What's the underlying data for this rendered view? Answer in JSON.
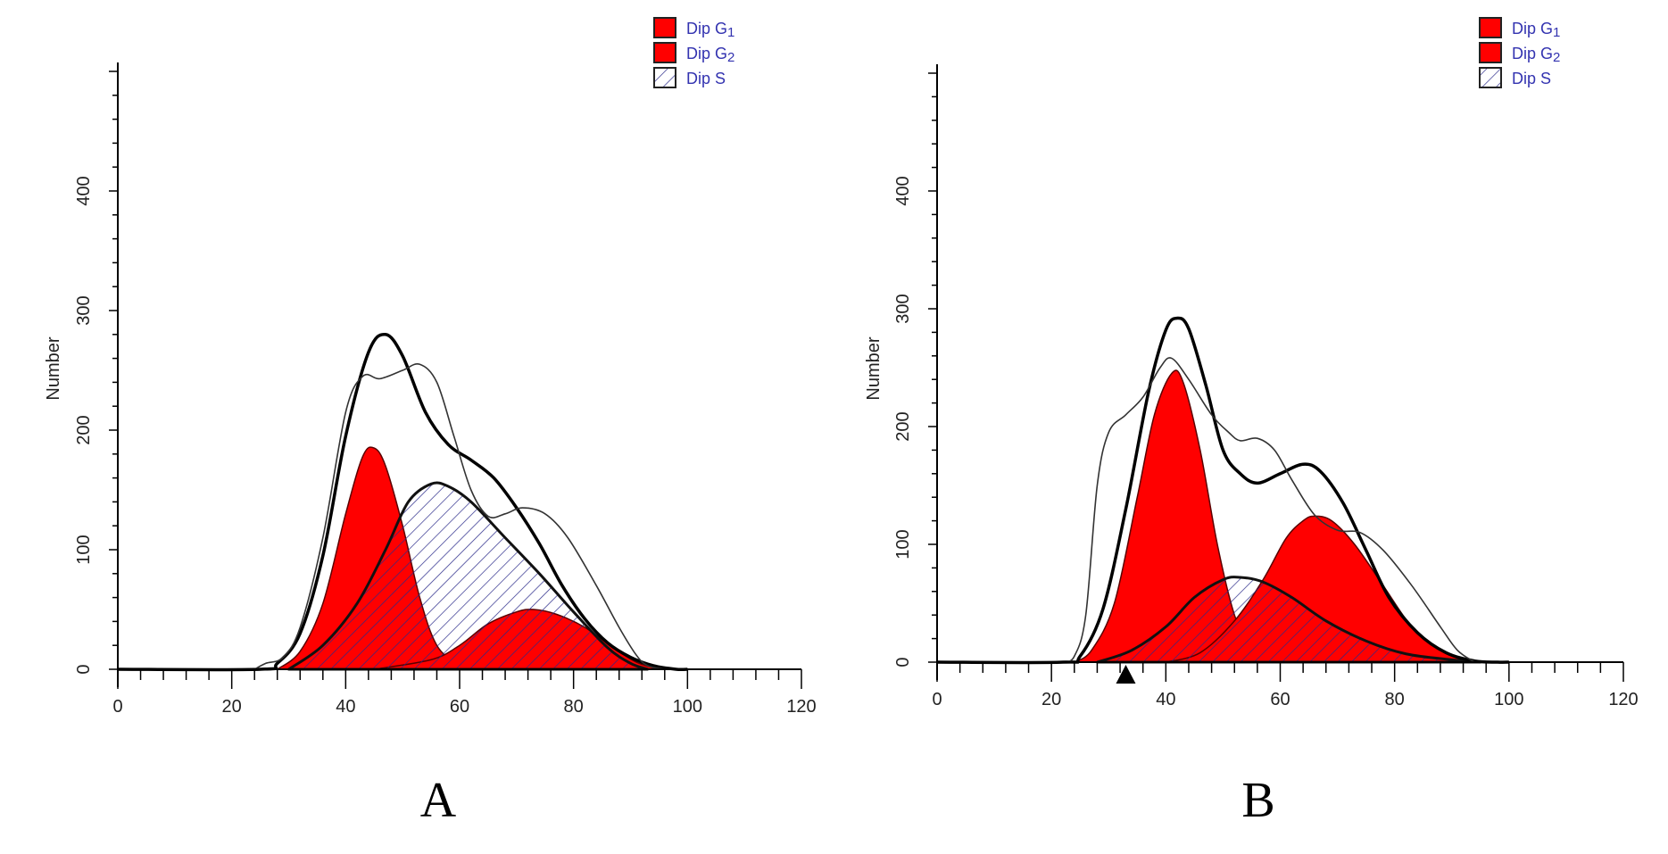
{
  "chart_data": [
    {
      "panel_label": "A",
      "type": "area",
      "ylabel": "Number",
      "xlim": [
        0,
        120
      ],
      "ylim": [
        0,
        500
      ],
      "xticks": [
        0,
        20,
        40,
        60,
        80,
        100,
        120
      ],
      "yticks": [
        0,
        100,
        200,
        300,
        400
      ],
      "legend": {
        "position": "top-right",
        "entries": [
          {
            "label": "Dip G",
            "sub": "1",
            "style": "solid",
            "color": "#ff0000"
          },
          {
            "label": "Dip G",
            "sub": "2",
            "style": "solid",
            "color": "#ff0000"
          },
          {
            "label": "Dip S",
            "sub": "",
            "style": "hatch",
            "color": "#2a2a8a"
          }
        ]
      },
      "series": [
        {
          "name": "Dip G1",
          "kind": "fill",
          "color": "#ff0000",
          "points": [
            [
              28,
              0
            ],
            [
              32,
              15
            ],
            [
              36,
              55
            ],
            [
              40,
              130
            ],
            [
              43,
              178
            ],
            [
              45,
              185
            ],
            [
              47,
              170
            ],
            [
              50,
              120
            ],
            [
              53,
              60
            ],
            [
              56,
              20
            ],
            [
              60,
              3
            ],
            [
              62,
              0
            ]
          ]
        },
        {
          "name": "Dip G2",
          "kind": "fill",
          "color": "#ff0000",
          "points": [
            [
              45,
              0
            ],
            [
              55,
              8
            ],
            [
              60,
              20
            ],
            [
              65,
              38
            ],
            [
              70,
              48
            ],
            [
              73,
              50
            ],
            [
              77,
              46
            ],
            [
              82,
              35
            ],
            [
              87,
              18
            ],
            [
              91,
              6
            ],
            [
              95,
              0
            ]
          ]
        },
        {
          "name": "Dip S",
          "kind": "hatch",
          "color": "#2a2a8a",
          "points": [
            [
              30,
              0
            ],
            [
              36,
              20
            ],
            [
              42,
              55
            ],
            [
              47,
              100
            ],
            [
              51,
              140
            ],
            [
              55,
              155
            ],
            [
              58,
              153
            ],
            [
              62,
              140
            ],
            [
              68,
              110
            ],
            [
              74,
              80
            ],
            [
              80,
              48
            ],
            [
              86,
              18
            ],
            [
              90,
              5
            ],
            [
              93,
              0
            ]
          ]
        },
        {
          "name": "Model fit",
          "kind": "thick-line",
          "color": "#000000",
          "points": [
            [
              0,
              0
            ],
            [
              25,
              0
            ],
            [
              28,
              5
            ],
            [
              32,
              30
            ],
            [
              36,
              95
            ],
            [
              40,
              195
            ],
            [
              44,
              265
            ],
            [
              47,
              280
            ],
            [
              50,
              262
            ],
            [
              54,
              215
            ],
            [
              58,
              188
            ],
            [
              62,
              175
            ],
            [
              66,
              160
            ],
            [
              70,
              135
            ],
            [
              74,
              105
            ],
            [
              78,
              70
            ],
            [
              82,
              42
            ],
            [
              86,
              22
            ],
            [
              90,
              10
            ],
            [
              94,
              3
            ],
            [
              98,
              0
            ],
            [
              100,
              0
            ]
          ]
        },
        {
          "name": "Data",
          "kind": "thin-line",
          "color": "#333333",
          "points": [
            [
              24,
              0
            ],
            [
              26,
              5
            ],
            [
              29,
              10
            ],
            [
              32,
              35
            ],
            [
              36,
              110
            ],
            [
              40,
              215
            ],
            [
              43,
              245
            ],
            [
              46,
              243
            ],
            [
              50,
              250
            ],
            [
              53,
              255
            ],
            [
              56,
              240
            ],
            [
              59,
              195
            ],
            [
              62,
              150
            ],
            [
              65,
              128
            ],
            [
              68,
              130
            ],
            [
              71,
              135
            ],
            [
              75,
              130
            ],
            [
              79,
              110
            ],
            [
              84,
              70
            ],
            [
              88,
              35
            ],
            [
              91,
              12
            ],
            [
              93,
              3
            ],
            [
              96,
              0
            ]
          ]
        }
      ]
    },
    {
      "panel_label": "B",
      "type": "area",
      "ylabel": "Number",
      "xlim": [
        0,
        120
      ],
      "ylim": [
        0,
        500
      ],
      "xticks": [
        0,
        20,
        40,
        60,
        80,
        100,
        120
      ],
      "yticks": [
        0,
        100,
        200,
        300,
        400
      ],
      "marker_x": 33,
      "legend": {
        "position": "top-right",
        "entries": [
          {
            "label": "Dip G",
            "sub": "1",
            "style": "solid",
            "color": "#ff0000"
          },
          {
            "label": "Dip G",
            "sub": "2",
            "style": "solid",
            "color": "#ff0000"
          },
          {
            "label": "Dip S",
            "sub": "",
            "style": "hatch",
            "color": "#2a2a8a"
          }
        ]
      },
      "series": [
        {
          "name": "Dip G1",
          "kind": "fill",
          "color": "#ff0000",
          "points": [
            [
              24,
              0
            ],
            [
              27,
              10
            ],
            [
              31,
              50
            ],
            [
              35,
              140
            ],
            [
              38,
              210
            ],
            [
              41,
              245
            ],
            [
              43,
              238
            ],
            [
              46,
              180
            ],
            [
              49,
              100
            ],
            [
              52,
              40
            ],
            [
              55,
              10
            ],
            [
              58,
              0
            ]
          ]
        },
        {
          "name": "Dip G2",
          "kind": "fill",
          "color": "#ff0000",
          "points": [
            [
              40,
              0
            ],
            [
              46,
              8
            ],
            [
              52,
              35
            ],
            [
              57,
              70
            ],
            [
              61,
              105
            ],
            [
              64,
              120
            ],
            [
              66,
              124
            ],
            [
              69,
              120
            ],
            [
              73,
              100
            ],
            [
              78,
              65
            ],
            [
              83,
              30
            ],
            [
              88,
              10
            ],
            [
              92,
              2
            ],
            [
              95,
              0
            ]
          ]
        },
        {
          "name": "Dip S",
          "kind": "hatch",
          "color": "#2a2a8a",
          "points": [
            [
              28,
              0
            ],
            [
              34,
              10
            ],
            [
              40,
              30
            ],
            [
              45,
              55
            ],
            [
              50,
              70
            ],
            [
              53,
              72
            ],
            [
              57,
              68
            ],
            [
              62,
              55
            ],
            [
              68,
              35
            ],
            [
              75,
              18
            ],
            [
              82,
              7
            ],
            [
              90,
              2
            ],
            [
              95,
              0
            ]
          ]
        },
        {
          "name": "Model fit",
          "kind": "thick-line",
          "color": "#000000",
          "points": [
            [
              0,
              0
            ],
            [
              22,
              0
            ],
            [
              25,
              5
            ],
            [
              29,
              45
            ],
            [
              33,
              130
            ],
            [
              37,
              230
            ],
            [
              40,
              282
            ],
            [
              42,
              292
            ],
            [
              44,
              283
            ],
            [
              47,
              235
            ],
            [
              50,
              180
            ],
            [
              53,
              160
            ],
            [
              56,
              152
            ],
            [
              60,
              160
            ],
            [
              64,
              168
            ],
            [
              67,
              162
            ],
            [
              71,
              135
            ],
            [
              75,
              95
            ],
            [
              79,
              55
            ],
            [
              84,
              25
            ],
            [
              89,
              8
            ],
            [
              94,
              1
            ],
            [
              98,
              0
            ],
            [
              100,
              0
            ]
          ]
        },
        {
          "name": "Data",
          "kind": "thin-line",
          "color": "#333333",
          "points": [
            [
              22,
              0
            ],
            [
              24,
              5
            ],
            [
              26,
              40
            ],
            [
              28,
              150
            ],
            [
              30,
              195
            ],
            [
              33,
              210
            ],
            [
              36,
              225
            ],
            [
              39,
              250
            ],
            [
              41,
              258
            ],
            [
              44,
              240
            ],
            [
              48,
              210
            ],
            [
              51,
              195
            ],
            [
              53,
              188
            ],
            [
              56,
              190
            ],
            [
              59,
              180
            ],
            [
              62,
              155
            ],
            [
              66,
              125
            ],
            [
              70,
              112
            ],
            [
              74,
              110
            ],
            [
              78,
              95
            ],
            [
              83,
              65
            ],
            [
              88,
              30
            ],
            [
              91,
              10
            ],
            [
              94,
              0
            ]
          ]
        }
      ]
    }
  ]
}
